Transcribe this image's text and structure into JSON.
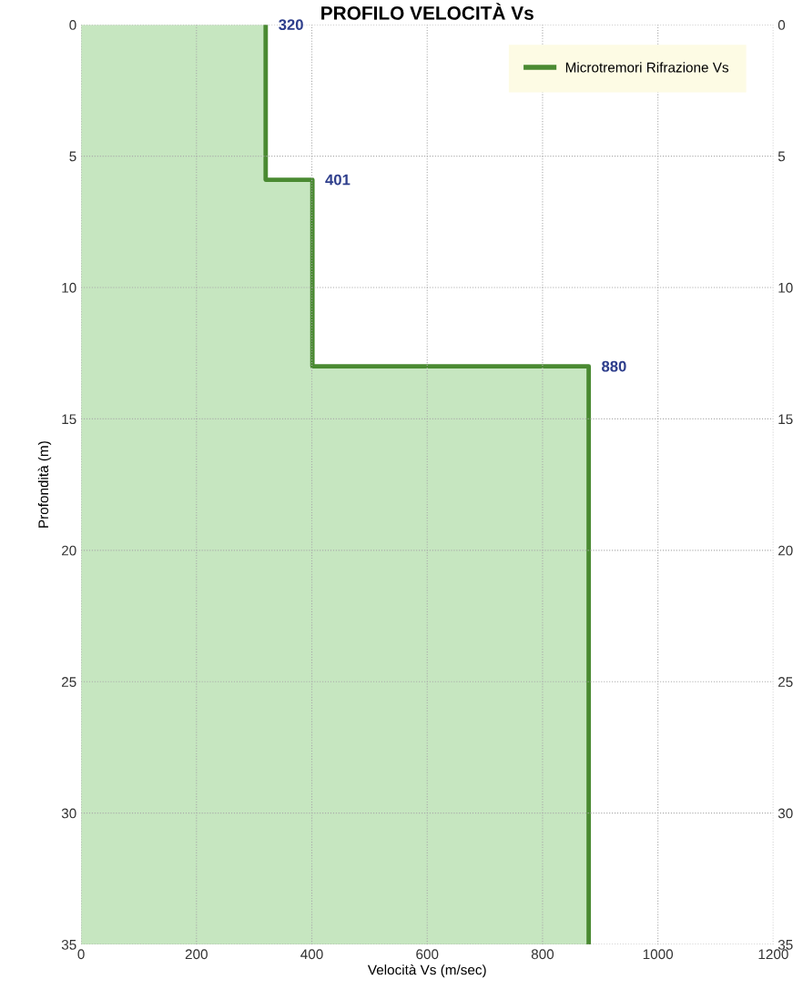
{
  "chart_data": {
    "type": "area",
    "orientation": "horizontal",
    "title": "PROFILO VELOCITÀ Vs",
    "xlabel": "Velocità Vs (m/sec)",
    "ylabel": "Profondità (m)",
    "series": [
      {
        "name": "Microtremori Rifrazione Vs",
        "color": "#4a8a32",
        "x": [
          0,
          5.9,
          5.9,
          13.0,
          13.0,
          35
        ],
        "values": [
          320,
          320,
          401,
          401,
          880,
          880
        ],
        "value_labels": [
          "320",
          null,
          "401",
          null,
          "880",
          null
        ]
      }
    ],
    "xlim": [
      0,
      1200
    ],
    "xticks": [
      0,
      200,
      400,
      600,
      800,
      1000,
      1200
    ],
    "ylim": [
      35,
      0
    ],
    "yticks": [
      0,
      5,
      10,
      15,
      20,
      25,
      30,
      35
    ],
    "y2lim": [
      35,
      0
    ],
    "y2ticks": [
      0,
      5,
      10,
      15,
      20,
      25,
      30,
      35
    ],
    "grid": true,
    "legend": "top right",
    "line_style": "solid"
  }
}
